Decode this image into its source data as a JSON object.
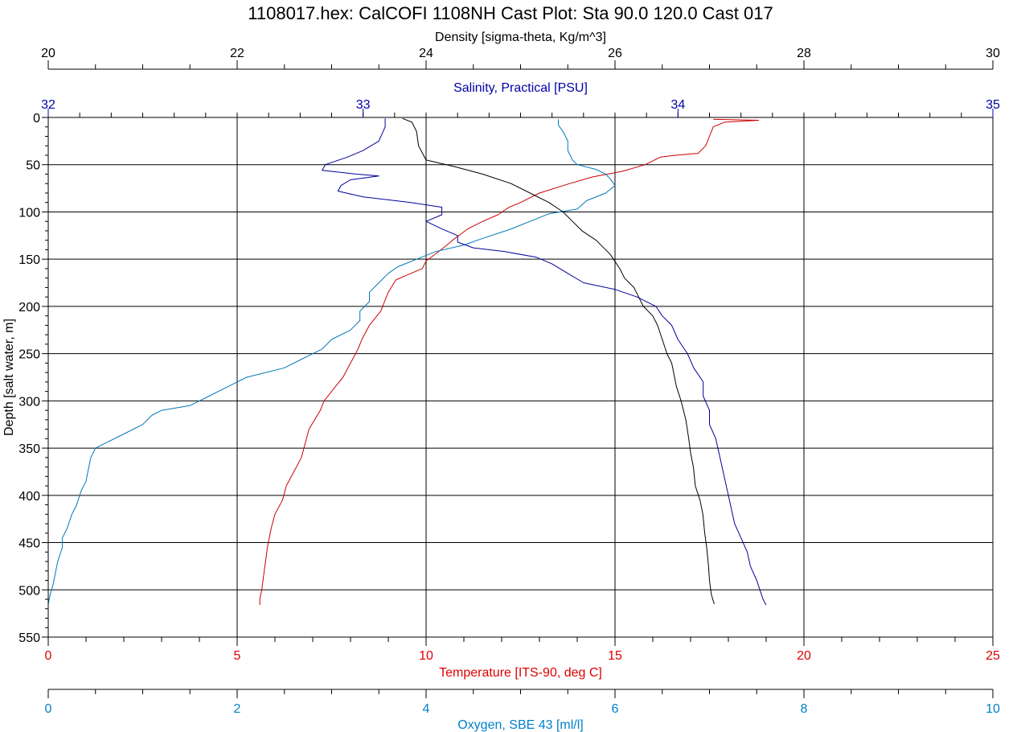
{
  "title": "1108017.hex: CalCOFI 1108NH Cast Plot: Sta 90.0 120.0 Cast 017",
  "chart_data": {
    "type": "line",
    "title": "1108017.hex: CalCOFI 1108NH Cast Plot: Sta 90.0 120.0 Cast 017",
    "y_axis": {
      "label": "Depth [salt water, m]",
      "range": [
        0,
        550
      ],
      "inverted": true,
      "ticks": [
        "0",
        "50",
        "100",
        "150",
        "200",
        "250",
        "300",
        "350",
        "400",
        "450",
        "500",
        "550"
      ]
    },
    "x_axes": [
      {
        "id": "density",
        "label": "Density [sigma-theta, Kg/m^3]",
        "range": [
          20,
          30
        ],
        "placement": "top",
        "color": "#000000",
        "ticks": [
          "20",
          "22",
          "24",
          "26",
          "28",
          "30"
        ]
      },
      {
        "id": "salinity",
        "label": "Salinity, Practical [PSU]",
        "range": [
          32,
          35
        ],
        "placement": "top",
        "color": "#0000aa",
        "ticks": [
          "32",
          "33",
          "34",
          "35"
        ]
      },
      {
        "id": "temperature",
        "label": "Temperature [ITS-90, deg C]",
        "range": [
          0,
          25
        ],
        "placement": "bottom",
        "color": "#dd0000",
        "ticks": [
          "0",
          "5",
          "10",
          "15",
          "20",
          "25"
        ]
      },
      {
        "id": "oxygen",
        "label": "Oxygen, SBE 43 [ml/l]",
        "range": [
          0,
          10
        ],
        "placement": "bottom",
        "color": "#0080c8",
        "ticks": [
          "0",
          "2",
          "4",
          "6",
          "8",
          "10"
        ]
      }
    ],
    "grid": true,
    "series": [
      {
        "axis": "temperature",
        "color": "#cc0000",
        "points": [
          [
            17.6,
            2
          ],
          [
            18.8,
            3
          ],
          [
            17.9,
            5
          ],
          [
            17.6,
            10
          ],
          [
            17.5,
            20
          ],
          [
            17.4,
            30
          ],
          [
            17.2,
            38
          ],
          [
            16.6,
            40
          ],
          [
            16.2,
            42
          ],
          [
            15.8,
            50
          ],
          [
            15.2,
            57
          ],
          [
            14.4,
            63
          ],
          [
            13.8,
            70
          ],
          [
            13.0,
            80
          ],
          [
            12.5,
            90
          ],
          [
            12.2,
            95
          ],
          [
            11.9,
            103
          ],
          [
            11.5,
            110
          ],
          [
            11.1,
            118
          ],
          [
            10.9,
            124
          ],
          [
            10.7,
            130
          ],
          [
            10.4,
            140
          ],
          [
            10.0,
            152
          ],
          [
            9.9,
            160
          ],
          [
            9.6,
            165
          ],
          [
            9.2,
            172
          ],
          [
            9.0,
            185
          ],
          [
            8.9,
            195
          ],
          [
            8.8,
            205
          ],
          [
            8.5,
            220
          ],
          [
            8.3,
            235
          ],
          [
            8.2,
            245
          ],
          [
            8.0,
            260
          ],
          [
            7.8,
            275
          ],
          [
            7.6,
            285
          ],
          [
            7.3,
            300
          ],
          [
            7.2,
            310
          ],
          [
            6.9,
            330
          ],
          [
            6.8,
            345
          ],
          [
            6.7,
            360
          ],
          [
            6.5,
            375
          ],
          [
            6.3,
            390
          ],
          [
            6.2,
            405
          ],
          [
            6.0,
            420
          ],
          [
            5.9,
            435
          ],
          [
            5.8,
            455
          ],
          [
            5.75,
            470
          ],
          [
            5.7,
            485
          ],
          [
            5.65,
            500
          ],
          [
            5.6,
            510
          ],
          [
            5.6,
            516
          ]
        ]
      },
      {
        "axis": "oxygen",
        "color": "#0078b8",
        "points": [
          [
            5.4,
            2
          ],
          [
            5.4,
            8
          ],
          [
            5.45,
            15
          ],
          [
            5.5,
            25
          ],
          [
            5.5,
            35
          ],
          [
            5.55,
            45
          ],
          [
            5.6,
            50
          ],
          [
            5.8,
            55
          ],
          [
            5.9,
            60
          ],
          [
            5.95,
            65
          ],
          [
            6.0,
            72
          ],
          [
            5.9,
            80
          ],
          [
            5.7,
            88
          ],
          [
            5.6,
            97
          ],
          [
            5.3,
            102
          ],
          [
            5.1,
            110
          ],
          [
            4.9,
            118
          ],
          [
            4.6,
            128
          ],
          [
            4.4,
            135
          ],
          [
            4.1,
            142
          ],
          [
            3.9,
            150
          ],
          [
            3.7,
            158
          ],
          [
            3.6,
            165
          ],
          [
            3.5,
            175
          ],
          [
            3.4,
            185
          ],
          [
            3.4,
            195
          ],
          [
            3.3,
            205
          ],
          [
            3.3,
            215
          ],
          [
            3.2,
            225
          ],
          [
            3.0,
            235
          ],
          [
            2.9,
            245
          ],
          [
            2.7,
            255
          ],
          [
            2.5,
            265
          ],
          [
            2.1,
            275
          ],
          [
            1.9,
            285
          ],
          [
            1.7,
            295
          ],
          [
            1.5,
            305
          ],
          [
            1.2,
            310
          ],
          [
            1.1,
            315
          ],
          [
            1.0,
            325
          ],
          [
            0.8,
            335
          ],
          [
            0.6,
            345
          ],
          [
            0.5,
            350
          ],
          [
            0.45,
            360
          ],
          [
            0.42,
            375
          ],
          [
            0.4,
            385
          ],
          [
            0.35,
            395
          ],
          [
            0.3,
            410
          ],
          [
            0.25,
            420
          ],
          [
            0.2,
            435
          ],
          [
            0.15,
            445
          ],
          [
            0.15,
            455
          ],
          [
            0.1,
            470
          ],
          [
            0.08,
            480
          ],
          [
            0.05,
            495
          ],
          [
            0.02,
            505
          ],
          [
            0.0,
            515
          ]
        ]
      },
      {
        "axis": "density",
        "color": "#000000",
        "points": [
          [
            23.75,
            1
          ],
          [
            23.85,
            5
          ],
          [
            23.9,
            15
          ],
          [
            23.92,
            30
          ],
          [
            24.0,
            45
          ],
          [
            24.3,
            52
          ],
          [
            24.6,
            60
          ],
          [
            24.9,
            70
          ],
          [
            25.1,
            80
          ],
          [
            25.3,
            90
          ],
          [
            25.45,
            100
          ],
          [
            25.55,
            110
          ],
          [
            25.65,
            120
          ],
          [
            25.8,
            130
          ],
          [
            25.95,
            145
          ],
          [
            26.05,
            160
          ],
          [
            26.1,
            170
          ],
          [
            26.2,
            180
          ],
          [
            26.25,
            190
          ],
          [
            26.3,
            200
          ],
          [
            26.4,
            210
          ],
          [
            26.45,
            220
          ],
          [
            26.5,
            235
          ],
          [
            26.55,
            250
          ],
          [
            26.6,
            260
          ],
          [
            26.62,
            270
          ],
          [
            26.65,
            285
          ],
          [
            26.7,
            300
          ],
          [
            26.75,
            320
          ],
          [
            26.78,
            340
          ],
          [
            26.8,
            355
          ],
          [
            26.83,
            370
          ],
          [
            26.85,
            390
          ],
          [
            26.9,
            405
          ],
          [
            26.93,
            420
          ],
          [
            26.95,
            440
          ],
          [
            26.97,
            455
          ],
          [
            26.99,
            475
          ],
          [
            27.0,
            490
          ],
          [
            27.02,
            505
          ],
          [
            27.05,
            515
          ]
        ]
      },
      {
        "axis": "salinity",
        "color": "#000099",
        "points": [
          [
            33.07,
            1
          ],
          [
            33.07,
            10
          ],
          [
            33.05,
            25
          ],
          [
            33.0,
            35
          ],
          [
            32.95,
            42
          ],
          [
            32.88,
            50
          ],
          [
            32.87,
            56
          ],
          [
            32.98,
            60
          ],
          [
            33.05,
            62
          ],
          [
            32.96,
            66
          ],
          [
            32.93,
            72
          ],
          [
            32.92,
            78
          ],
          [
            33.0,
            84
          ],
          [
            33.15,
            90
          ],
          [
            33.25,
            95
          ],
          [
            33.25,
            103
          ],
          [
            33.2,
            110
          ],
          [
            33.25,
            118
          ],
          [
            33.3,
            125
          ],
          [
            33.3,
            132
          ],
          [
            33.35,
            138
          ],
          [
            33.45,
            142
          ],
          [
            33.55,
            148
          ],
          [
            33.6,
            155
          ],
          [
            33.65,
            165
          ],
          [
            33.7,
            175
          ],
          [
            33.8,
            182
          ],
          [
            33.87,
            190
          ],
          [
            33.93,
            200
          ],
          [
            33.95,
            210
          ],
          [
            33.98,
            220
          ],
          [
            34.0,
            235
          ],
          [
            34.03,
            250
          ],
          [
            34.05,
            265
          ],
          [
            34.08,
            280
          ],
          [
            34.08,
            295
          ],
          [
            34.1,
            310
          ],
          [
            34.1,
            325
          ],
          [
            34.12,
            340
          ],
          [
            34.13,
            355
          ],
          [
            34.14,
            370
          ],
          [
            34.15,
            385
          ],
          [
            34.16,
            400
          ],
          [
            34.17,
            415
          ],
          [
            34.18,
            430
          ],
          [
            34.2,
            445
          ],
          [
            34.22,
            460
          ],
          [
            34.23,
            475
          ],
          [
            34.25,
            490
          ],
          [
            34.26,
            500
          ],
          [
            34.27,
            510
          ],
          [
            34.28,
            516
          ]
        ]
      }
    ]
  }
}
